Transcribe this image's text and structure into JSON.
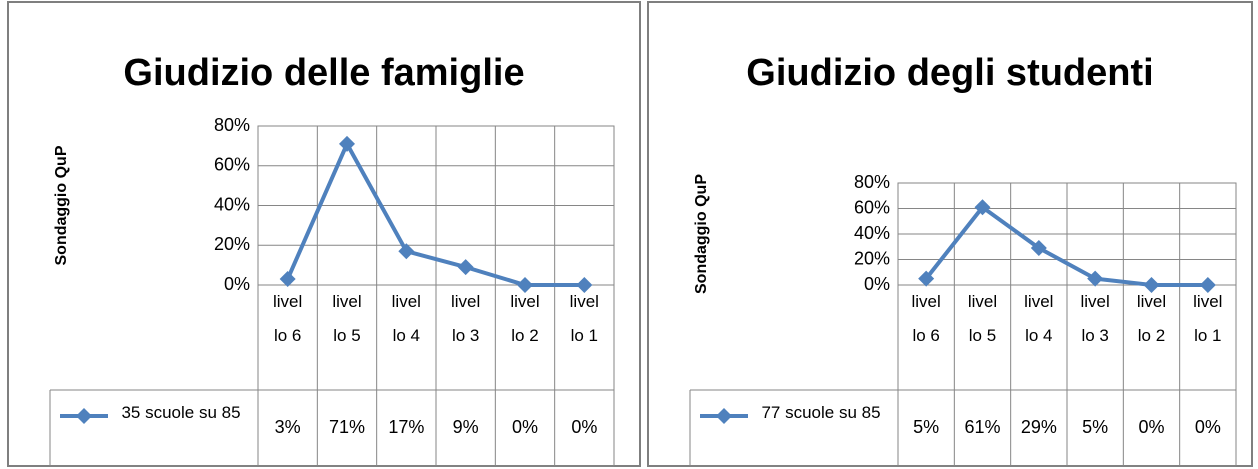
{
  "chart_data": [
    {
      "type": "line",
      "title": "Giudizio delle famiglie",
      "y_label": "Sondaggio QuP",
      "categories": [
        "livello 6",
        "livello 5",
        "livello 4",
        "livello 3",
        "livello 2",
        "livello 1"
      ],
      "series": [
        {
          "name": "35 scuole su 85",
          "color": "#4f81bd",
          "values": [
            3,
            71,
            17,
            9,
            0,
            0
          ],
          "value_labels": [
            "3%",
            "71%",
            "17%",
            "9%",
            "0%",
            "0%"
          ]
        }
      ],
      "ylim": [
        0,
        80
      ],
      "yticks": [
        {
          "value": 0,
          "label": "0%"
        },
        {
          "value": 20,
          "label": "20%"
        },
        {
          "value": 40,
          "label": "40%"
        },
        {
          "value": 60,
          "label": "60%"
        },
        {
          "value": 80,
          "label": "80%"
        }
      ],
      "grid": true
    },
    {
      "type": "line",
      "title": "Giudizio degli studenti",
      "y_label": "Sondaggio QuP",
      "categories": [
        "livello 6",
        "livello 5",
        "livello 4",
        "livello 3",
        "livello 2",
        "livello 1"
      ],
      "series": [
        {
          "name": "77 scuole su 85",
          "color": "#4f81bd",
          "values": [
            5,
            61,
            29,
            5,
            0,
            0
          ],
          "value_labels": [
            "5%",
            "61%",
            "29%",
            "5%",
            "0%",
            "0%"
          ]
        }
      ],
      "ylim": [
        0,
        80
      ],
      "yticks": [
        {
          "value": 0,
          "label": "0%"
        },
        {
          "value": 20,
          "label": "20%"
        },
        {
          "value": 40,
          "label": "40%"
        },
        {
          "value": 60,
          "label": "60%"
        },
        {
          "value": 80,
          "label": "80%"
        }
      ],
      "grid": true
    }
  ]
}
